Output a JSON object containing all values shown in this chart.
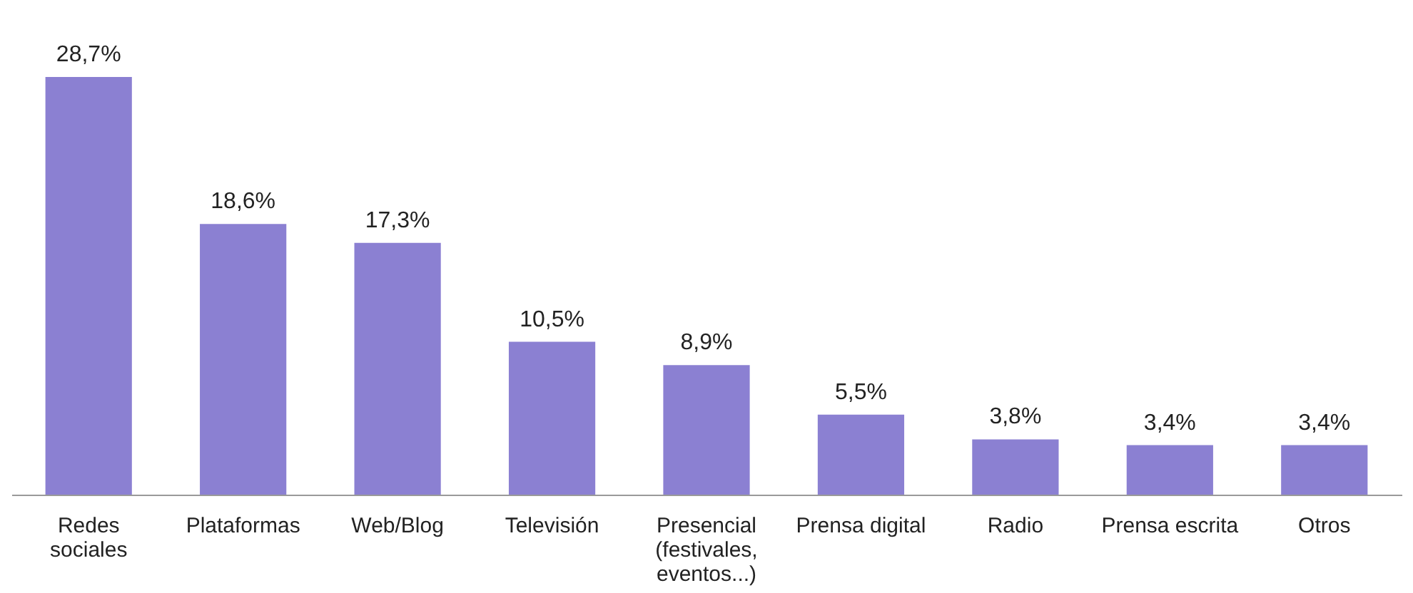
{
  "chart_data": {
    "type": "bar",
    "categories": [
      "Redes\nsociales",
      "Plataformas",
      "Web/Blog",
      "Televisión",
      "Presencial\n(festivales,\neventos...)",
      "Prensa digital",
      "Radio",
      "Prensa escrita",
      "Otros"
    ],
    "values": [
      28.7,
      18.6,
      17.3,
      10.5,
      8.9,
      5.5,
      3.8,
      3.4,
      3.4
    ],
    "value_labels": [
      "28,7%",
      "18,6%",
      "17,3%",
      "10,5%",
      "8,9%",
      "5,5%",
      "3,8%",
      "3,4%",
      "3,4%"
    ],
    "color": "#8b80d2",
    "grid": false
  }
}
